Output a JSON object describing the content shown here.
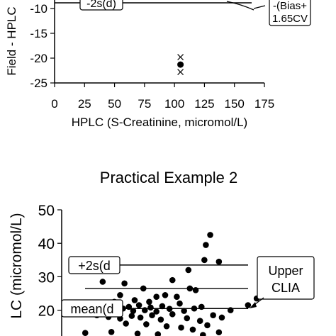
{
  "chart_data": [
    {
      "type": "scatter",
      "ylabel": "Field - HPLC",
      "xlabel": "HPLC (S-Creatinine, micromol/L)",
      "xlim": [
        0,
        175
      ],
      "ylim": [
        -25,
        -8
      ],
      "xticks": [
        "0",
        "25",
        "50",
        "75",
        "100",
        "125",
        "150",
        "175"
      ],
      "yticks": [
        "-10",
        "-15",
        "-20",
        "-25"
      ],
      "series": [
        {
          "name": "",
          "marker": "cross",
          "points": [
            {
              "x": 105,
              "y": -19.8
            },
            {
              "x": 105,
              "y": -22.8
            }
          ]
        },
        {
          "name": "",
          "marker": "dot",
          "points": [
            {
              "x": 105,
              "y": -21.3
            }
          ]
        }
      ],
      "reference_lines": [
        {
          "label": "-2s(d)",
          "y": -9.2,
          "x_start": 0,
          "x_end": 150
        },
        {
          "label": "-(Bias+\n1.65CV",
          "y": -10,
          "x_start": 130,
          "x_end": 150,
          "shape": "curve"
        }
      ],
      "annotation_labels": [
        "-2s(d)",
        "-(Bias+",
        "1.65CV"
      ]
    },
    {
      "type": "scatter",
      "title": "Practical Example 2",
      "ylabel": "LC (micromol/L)",
      "ylim": [
        12,
        52
      ],
      "yticks": [
        "50",
        "40",
        "30",
        "20"
      ],
      "reference_lines": [
        {
          "label": "+2s(d",
          "y": 33.5
        },
        {
          "label": "Upper\nCLIA",
          "y": 26.5
        },
        {
          "label": "mean(d",
          "y": 20.5
        }
      ],
      "annotation_labels": [
        "+2s(d",
        "Upper",
        "CLIA",
        "mean(d"
      ],
      "points": [
        {
          "x": 106,
          "y": 42.5
        },
        {
          "x": 103,
          "y": 39.5
        },
        {
          "x": 112,
          "y": 34.5
        },
        {
          "x": 91,
          "y": 32
        },
        {
          "x": 102,
          "y": 35
        },
        {
          "x": 32,
          "y": 28.5
        },
        {
          "x": 47,
          "y": 28
        },
        {
          "x": 80,
          "y": 29
        },
        {
          "x": 138,
          "y": 23.5
        },
        {
          "x": 132,
          "y": 21.5
        },
        {
          "x": 96,
          "y": 26
        },
        {
          "x": 92,
          "y": 26.5
        },
        {
          "x": 60,
          "y": 26.5
        },
        {
          "x": 75,
          "y": 24.5
        },
        {
          "x": 83,
          "y": 24
        },
        {
          "x": 69,
          "y": 24
        },
        {
          "x": 44,
          "y": 24.5
        },
        {
          "x": 54,
          "y": 23
        },
        {
          "x": 64,
          "y": 22.5
        },
        {
          "x": 85,
          "y": 22
        },
        {
          "x": 40,
          "y": 22.5
        },
        {
          "x": 26,
          "y": 21
        },
        {
          "x": 30,
          "y": 20.5
        },
        {
          "x": 34,
          "y": 21.5
        },
        {
          "x": 38,
          "y": 20
        },
        {
          "x": 42,
          "y": 21
        },
        {
          "x": 46,
          "y": 20.5
        },
        {
          "x": 50,
          "y": 21
        },
        {
          "x": 53,
          "y": 19.8
        },
        {
          "x": 57,
          "y": 21.5
        },
        {
          "x": 61,
          "y": 20
        },
        {
          "x": 65,
          "y": 20.8
        },
        {
          "x": 69,
          "y": 19.6
        },
        {
          "x": 73,
          "y": 21.2
        },
        {
          "x": 78,
          "y": 20.4
        },
        {
          "x": 88,
          "y": 19.8
        },
        {
          "x": 95,
          "y": 20.5
        },
        {
          "x": 100,
          "y": 21
        },
        {
          "x": 120,
          "y": 20
        },
        {
          "x": 108,
          "y": 18.5
        },
        {
          "x": 114,
          "y": 17.8
        },
        {
          "x": 28,
          "y": 18.5
        },
        {
          "x": 36,
          "y": 18
        },
        {
          "x": 44,
          "y": 17.5
        },
        {
          "x": 52,
          "y": 18.3
        },
        {
          "x": 58,
          "y": 17.8
        },
        {
          "x": 66,
          "y": 18.5
        },
        {
          "x": 72,
          "y": 17.2
        },
        {
          "x": 80,
          "y": 18.8
        },
        {
          "x": 90,
          "y": 17.6
        },
        {
          "x": 99,
          "y": 16.8
        },
        {
          "x": 104,
          "y": 15.5
        },
        {
          "x": 48,
          "y": 16
        },
        {
          "x": 62,
          "y": 15.8
        },
        {
          "x": 76,
          "y": 15.2
        },
        {
          "x": 86,
          "y": 14.8
        },
        {
          "x": 94,
          "y": 14.2
        },
        {
          "x": 20,
          "y": 13.2
        },
        {
          "x": 38,
          "y": 13.5
        },
        {
          "x": 56,
          "y": 13
        },
        {
          "x": 70,
          "y": 12.8
        },
        {
          "x": 101,
          "y": 12.6
        },
        {
          "x": 112,
          "y": 13.4
        }
      ]
    }
  ]
}
